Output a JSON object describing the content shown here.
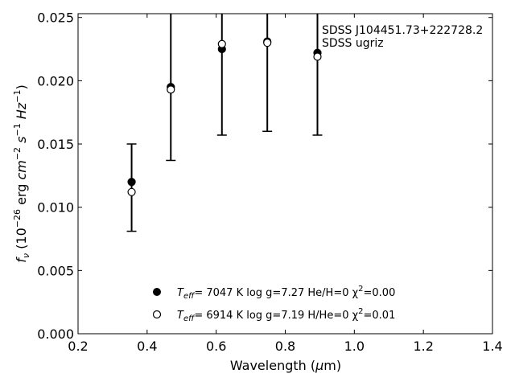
{
  "chart_data": {
    "type": "scatter",
    "annotation": [
      "SDSS J104451.73+222728.2",
      "SDSS ugriz"
    ],
    "xlabel": "Wavelength (μm)",
    "ylabel": "f_ν (10^-26 erg cm^-2 s^-1 Hz^-1)",
    "xlim": [
      0.2,
      1.4
    ],
    "ylim": [
      0.0,
      0.0253
    ],
    "xticks": [
      "0.2",
      "0.4",
      "0.6",
      "0.8",
      "1.0",
      "1.2",
      "1.4"
    ],
    "yticks": [
      "0.000",
      "0.005",
      "0.010",
      "0.015",
      "0.020",
      "0.025"
    ],
    "grid": false,
    "legend_placement": "lower-center",
    "observed": {
      "x": [
        0.3551,
        0.4686,
        0.6166,
        0.748,
        0.8932
      ],
      "y": [
        0.0119,
        0.0195,
        0.0225,
        0.023,
        0.0222
      ],
      "yerr_low": [
        0.0081,
        0.0137,
        0.0157,
        0.016,
        0.0157
      ],
      "yerr_high": [
        0.015,
        0.0265,
        0.03,
        0.03,
        0.03
      ]
    },
    "series": [
      {
        "name": "T_eff= 7047 K log g=7.27 He/H=0 χ²=0.00",
        "marker": "filled-circle",
        "x": [
          0.3551,
          0.4686,
          0.6166,
          0.748,
          0.8932
        ],
        "y": [
          0.012,
          0.0195,
          0.0225,
          0.0231,
          0.0222
        ]
      },
      {
        "name": "T_eff= 6914 K log g=7.19 H/He=0 χ²=0.01",
        "marker": "open-circle",
        "x": [
          0.3551,
          0.4686,
          0.6166,
          0.748,
          0.8932
        ],
        "y": [
          0.0112,
          0.0193,
          0.0229,
          0.023,
          0.0219
        ]
      }
    ],
    "legend": [
      {
        "marker": "filled-circle",
        "teff_sub": "eff",
        "text": "=  7047 K  log g=7.27  He/H=0  χ",
        "sup": "2",
        "tail": "=0.00"
      },
      {
        "marker": "open-circle",
        "teff_sub": "eff",
        "text": "=  6914 K  log g=7.19  H/He=0  χ",
        "sup": "2",
        "tail": "=0.01"
      }
    ],
    "colors": {
      "axis": "#000000",
      "marker_edge": "#000000",
      "filled": "#000000",
      "open": "#ffffff"
    }
  }
}
